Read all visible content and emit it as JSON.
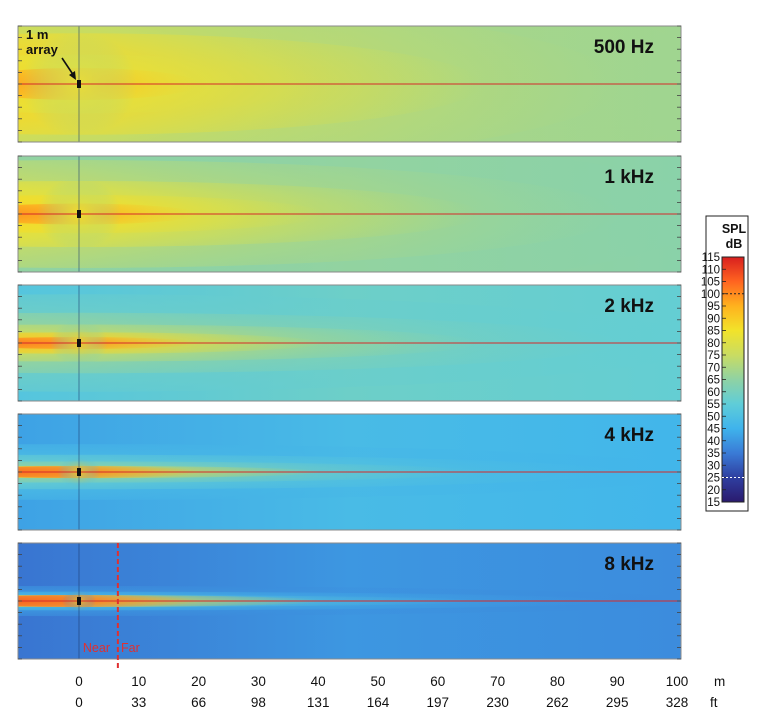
{
  "chart_data": {
    "type": "heatmap",
    "title": "",
    "panels": [
      {
        "label": "500 Hz",
        "source_level_db": 102,
        "beam_spread": 1.15,
        "far_db": 68
      },
      {
        "label": "1 kHz",
        "source_level_db": 105,
        "beam_spread": 0.75,
        "far_db": 64
      },
      {
        "label": "2 kHz",
        "source_level_db": 108,
        "beam_spread": 0.42,
        "far_db": 56
      },
      {
        "label": "4 kHz",
        "source_level_db": 110,
        "beam_spread": 0.24,
        "far_db": 46
      },
      {
        "label": "8 kHz",
        "source_level_db": 112,
        "beam_spread": 0.13,
        "far_db": 38
      }
    ],
    "x_axis": {
      "range_m": [
        -10,
        100
      ],
      "meters": [
        "0",
        "10",
        "20",
        "30",
        "40",
        "50",
        "60",
        "70",
        "80",
        "90",
        "100"
      ],
      "meters_unit": "m",
      "feet": [
        "0",
        "33",
        "66",
        "98",
        "131",
        "164",
        "197",
        "230",
        "262",
        "295",
        "328"
      ],
      "feet_unit": "ft"
    },
    "colorbar": {
      "title_line1": "SPL",
      "title_line2": "dB",
      "range": [
        15,
        115
      ],
      "ticks": [
        "115",
        "110",
        "105",
        "100",
        "95",
        "90",
        "85",
        "80",
        "75",
        "70",
        "65",
        "60",
        "55",
        "50",
        "45",
        "40",
        "35",
        "30",
        "25",
        "20",
        "15"
      ],
      "colors": [
        "#2a1a6e",
        "#2f3fa0",
        "#3a7bd6",
        "#3fb3ec",
        "#5fcdd8",
        "#8fd2a4",
        "#c9dc62",
        "#f2e32a",
        "#ffb21e",
        "#ff6420",
        "#d81f1f"
      ]
    },
    "annotations": {
      "array_line1": "1 m",
      "array_line2": "array",
      "near_label": "Near",
      "far_label": "Far",
      "near_far_boundary_m": 6.5
    }
  }
}
